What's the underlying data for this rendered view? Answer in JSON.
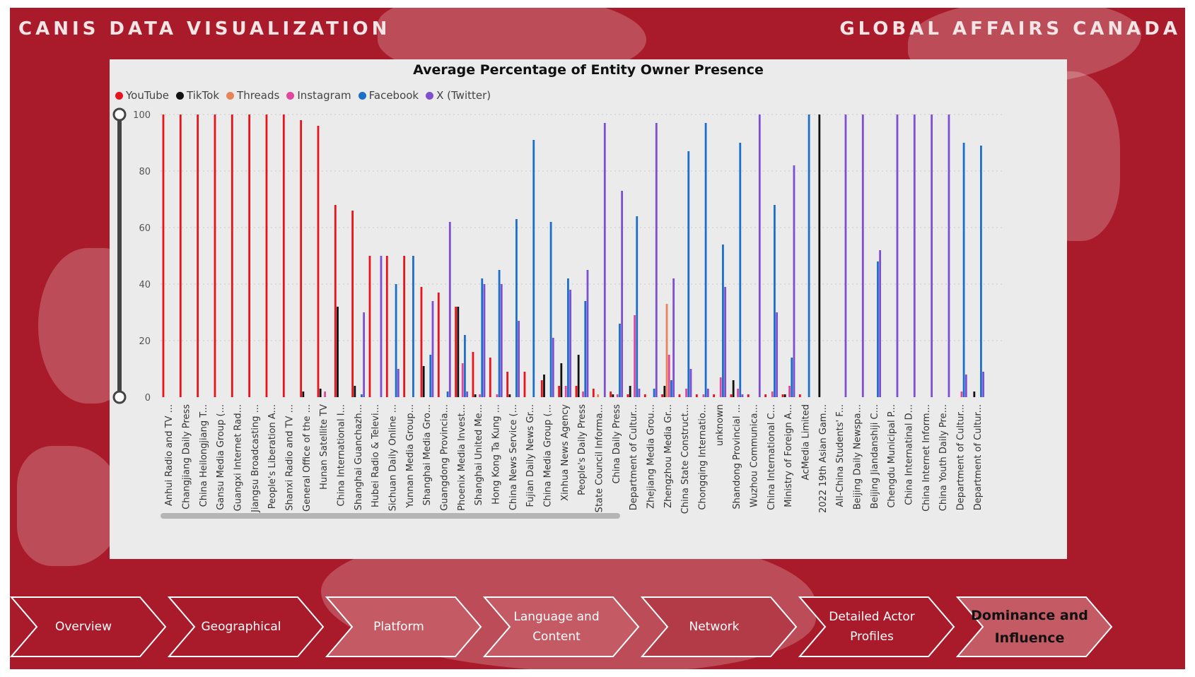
{
  "header": {
    "left_title": "CANIS DATA VISUALIZATION",
    "right_title": "GLOBAL AFFAIRS CANADA"
  },
  "colors": {
    "background": "#a91b2a",
    "panel": "#ebebeb",
    "youtube": "#e8141c",
    "tiktok": "#111111",
    "threads": "#e8845a",
    "instagram": "#e0489e",
    "facebook": "#1b6fc8",
    "x_twitter": "#7e4fd0"
  },
  "legend": [
    {
      "name": "YouTube",
      "color": "#e8141c"
    },
    {
      "name": "TikTok",
      "color": "#111111"
    },
    {
      "name": "Threads",
      "color": "#e8845a"
    },
    {
      "name": "Instagram",
      "color": "#e0489e"
    },
    {
      "name": "Facebook",
      "color": "#1b6fc8"
    },
    {
      "name": "X (Twitter)",
      "color": "#7e4fd0"
    }
  ],
  "chart_data": {
    "type": "bar",
    "title": "Average Percentage of Entity Owner Presence",
    "xlabel": "",
    "ylabel": "",
    "ylim": [
      0,
      100
    ],
    "yticks": [
      0,
      20,
      40,
      60,
      80,
      100
    ],
    "grid": true,
    "legend_position": "top-left",
    "categories": [
      "Anhui Radio and TV ...",
      "Changjiang Daily Press",
      "China Heilongjiang T...",
      "Gansu Media Group (...",
      "Guangxi Internet Rad...",
      "Jiangsu Broadcasting ...",
      "People's Liberation A...",
      "Shanxi Radio and TV ...",
      "General Office of the ...",
      "Hunan Satellite TV",
      "China International I...",
      "Shanghai Guanchazh...",
      "Hubei Radio & Televi...",
      "Sichuan Daily Online ...",
      "Yunnan Media Group...",
      "Shanghai Media Gro...",
      "Guangdong Provincia...",
      "Phoenix Media Invest...",
      "Shanghai United Me...",
      "Hong Kong Ta Kung ...",
      "China News Service (...",
      "Fujian Daily News Gr...",
      "China Media Group (...",
      "Xinhua News Agency",
      "People's Daily Press",
      "State Council Informa...",
      "China Daily Press",
      "Department of Cultur...",
      "Zhejiang Media Grou...",
      "Zhengzhou Media Gr...",
      "China State Construct...",
      "Chongqing Internatio...",
      "unknown",
      "Shandong Provincial ...",
      "Wuzhou Communica...",
      "China International C...",
      "Ministry of Foreign A...",
      "AcMedia Limited",
      "2022 19th Asian Gam...",
      "All-China Students' F...",
      "Beijing Daily Newspa...",
      "Beijing Jiandanshiji C...",
      "Chengdu Municipal P...",
      "China Internatinal D...",
      "China Internet Inform...",
      "China Youth Daily Pre...",
      "Department of Cultur...",
      "Department of Cultur..."
    ],
    "series": [
      {
        "name": "YouTube",
        "values": [
          100,
          100,
          100,
          100,
          100,
          100,
          100,
          100,
          98,
          96,
          68,
          66,
          50,
          50,
          50,
          39,
          37,
          32,
          16,
          14,
          9,
          9,
          6,
          4,
          4,
          3,
          2,
          1,
          1,
          1,
          1,
          1,
          1,
          1,
          1,
          1,
          1,
          1,
          0,
          0,
          0,
          0,
          0,
          0,
          0,
          0,
          0,
          0
        ]
      },
      {
        "name": "TikTok",
        "values": [
          0,
          0,
          0,
          0,
          0,
          0,
          0,
          0,
          2,
          3,
          32,
          4,
          0,
          0,
          0,
          11,
          0,
          32,
          1,
          0,
          1,
          0,
          8,
          12,
          15,
          0,
          1,
          4,
          0,
          4,
          0,
          0,
          0,
          6,
          0,
          0,
          1,
          0,
          100,
          0,
          0,
          0,
          0,
          0,
          0,
          0,
          0,
          2
        ]
      },
      {
        "name": "Threads",
        "values": [
          0,
          0,
          0,
          0,
          0,
          0,
          0,
          0,
          0,
          0,
          0,
          0,
          0,
          0,
          0,
          0,
          0,
          0,
          0,
          0,
          0,
          0,
          0,
          0,
          0,
          1,
          0,
          0,
          0,
          33,
          0,
          0,
          0,
          0,
          0,
          0,
          0,
          0,
          0,
          0,
          0,
          0,
          0,
          0,
          0,
          0,
          0,
          0
        ]
      },
      {
        "name": "Instagram",
        "values": [
          0,
          0,
          0,
          0,
          0,
          0,
          0,
          0,
          0,
          2,
          0,
          0,
          0,
          0,
          0,
          0,
          0,
          12,
          1,
          1,
          0,
          0,
          0,
          4,
          2,
          0,
          1,
          29,
          0,
          15,
          3,
          1,
          7,
          3,
          0,
          2,
          4,
          0,
          0,
          0,
          0,
          0,
          0,
          0,
          0,
          0,
          2,
          0
        ]
      },
      {
        "name": "Facebook",
        "values": [
          0,
          0,
          0,
          0,
          0,
          0,
          0,
          0,
          0,
          0,
          0,
          1,
          0,
          40,
          50,
          15,
          2,
          22,
          42,
          45,
          63,
          91,
          62,
          42,
          34,
          0,
          26,
          64,
          3,
          6,
          87,
          97,
          54,
          90,
          0,
          68,
          14,
          100,
          0,
          0,
          0,
          48,
          0,
          0,
          0,
          0,
          90,
          89
        ]
      },
      {
        "name": "X (Twitter)",
        "values": [
          0,
          0,
          0,
          0,
          0,
          0,
          0,
          0,
          0,
          0,
          0,
          30,
          50,
          10,
          0,
          34,
          62,
          2,
          40,
          40,
          27,
          0,
          21,
          38,
          45,
          97,
          73,
          3,
          97,
          42,
          10,
          3,
          39,
          1,
          100,
          30,
          82,
          0,
          0,
          100,
          100,
          52,
          100,
          100,
          100,
          100,
          8,
          9
        ]
      }
    ]
  },
  "nav": [
    {
      "label": "Overview",
      "active": false
    },
    {
      "label": "Geographical",
      "active": false
    },
    {
      "label": "Platform",
      "active": false
    },
    {
      "label": "Language and Content",
      "active": false
    },
    {
      "label": "Network",
      "active": false
    },
    {
      "label": "Detailed Actor Profiles",
      "active": false
    },
    {
      "label": "Dominance and Influence",
      "active": true
    }
  ]
}
